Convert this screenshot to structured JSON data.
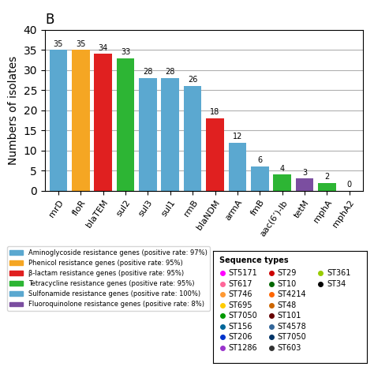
{
  "chart_data": {
    "type": "bar",
    "title": "B",
    "categories": [
      "mrD",
      "floR",
      "blaTEM",
      "sul2",
      "sul3",
      "sul1",
      "rmB",
      "blaNDM",
      "armA",
      "fmB",
      "aac(6’)-lb",
      "tetM",
      "mphA",
      "mphA2"
    ],
    "values": [
      35,
      35,
      34,
      33,
      28,
      28,
      26,
      18,
      12,
      6,
      4,
      3,
      2,
      0
    ],
    "colors": [
      "#5BA8D0",
      "#F5A623",
      "#E02020",
      "#2DB534",
      "#5BA8D0",
      "#5BA8D0",
      "#5BA8D0",
      "#E02020",
      "#5BA8D0",
      "#5BA8D0",
      "#2DB534",
      "#7B4EA0",
      "#2DB534",
      "#5BA8D0"
    ],
    "y_label": "Numbers of isolates",
    "ylim": [
      0,
      40
    ],
    "yticks": [
      0,
      5,
      10,
      15,
      20,
      25,
      30,
      35,
      40
    ],
    "grid": true,
    "data_labels": true,
    "legend_entries": [
      {
        "label": "Aminoglycoside resistance genes (positive rate: 97%)",
        "color": "#5BA8D0"
      },
      {
        "label": "Phenicol resistance genes (positive rate: 95%)",
        "color": "#F5A623"
      },
      {
        "label": "β-lactam resistance genes (positive rate: 95%)",
        "color": "#E02020"
      },
      {
        "label": "Tetracycline resistance genes (positive rate: 95%)",
        "color": "#2DB534"
      },
      {
        "label": "Sulfonamide resistance genes (positive rate: 100%)",
        "color": "#5BA8D0"
      },
      {
        "label": "Fluoroquinolone resistance genes (positive rate: 8%)",
        "color": "#7B4EA0"
      }
    ],
    "annotations": [
      {
        "text": "Sequence types"
      },
      {
        "text": "ST5171",
        "color": "#FF00FF"
      },
      {
        "text": "ST617",
        "color": "#FF6699"
      },
      {
        "text": "ST746",
        "color": "#FF9933"
      },
      {
        "text": "ST695",
        "color": "#FFCC00"
      },
      {
        "text": "ST7050",
        "color": "#009900"
      },
      {
        "text": "ST156",
        "color": "#006699"
      },
      {
        "text": "ST206",
        "color": "#0033CC"
      },
      {
        "text": "ST1286",
        "color": "#9933CC"
      },
      {
        "text": "ST29",
        "color": "#CC0000"
      },
      {
        "text": "ST10",
        "color": "#006600"
      },
      {
        "text": "ST4214",
        "color": "#FF6600"
      },
      {
        "text": "ST48",
        "color": "#CC6600"
      },
      {
        "text": "ST101",
        "color": "#660000"
      },
      {
        "text": "ST4578",
        "color": "#336699"
      },
      {
        "text": "ST7050",
        "color": "#003366"
      },
      {
        "text": "ST603",
        "color": "#333333"
      },
      {
        "text": "ST361",
        "color": "#99CC00"
      },
      {
        "text": "ST34",
        "color": "#000000"
      }
    ]
  }
}
